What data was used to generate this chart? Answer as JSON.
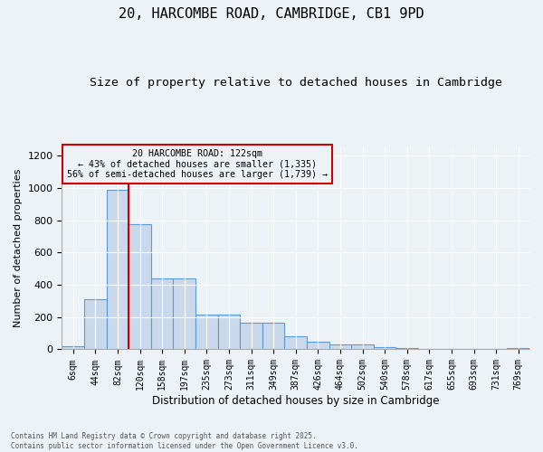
{
  "title_line1": "20, HARCOMBE ROAD, CAMBRIDGE, CB1 9PD",
  "title_line2": "Size of property relative to detached houses in Cambridge",
  "xlabel": "Distribution of detached houses by size in Cambridge",
  "ylabel": "Number of detached properties",
  "categories": [
    "6sqm",
    "44sqm",
    "82sqm",
    "120sqm",
    "158sqm",
    "197sqm",
    "235sqm",
    "273sqm",
    "311sqm",
    "349sqm",
    "387sqm",
    "426sqm",
    "464sqm",
    "502sqm",
    "540sqm",
    "578sqm",
    "617sqm",
    "655sqm",
    "693sqm",
    "731sqm",
    "769sqm"
  ],
  "values": [
    22,
    310,
    990,
    775,
    440,
    440,
    215,
    215,
    165,
    165,
    80,
    48,
    30,
    30,
    15,
    8,
    0,
    0,
    0,
    0,
    8
  ],
  "bar_color": "#c9d9eb",
  "bar_edge_color": "#5b9bd5",
  "annotation_box_text_line1": "20 HARCOMBE ROAD: 122sqm",
  "annotation_box_text_line2": "← 43% of detached houses are smaller (1,335)",
  "annotation_box_text_line3": "56% of semi-detached houses are larger (1,739) →",
  "vline_x": 2.5,
  "vline_color": "#cc0000",
  "annotation_box_color": "#cc0000",
  "ylim": [
    0,
    1260
  ],
  "yticks": [
    0,
    200,
    400,
    600,
    800,
    1000,
    1200
  ],
  "footnote1": "Contains HM Land Registry data © Crown copyright and database right 2025.",
  "footnote2": "Contains public sector information licensed under the Open Government Licence v3.0.",
  "bg_color": "#edf2f7",
  "title_fontsize": 11,
  "subtitle_fontsize": 9.5
}
